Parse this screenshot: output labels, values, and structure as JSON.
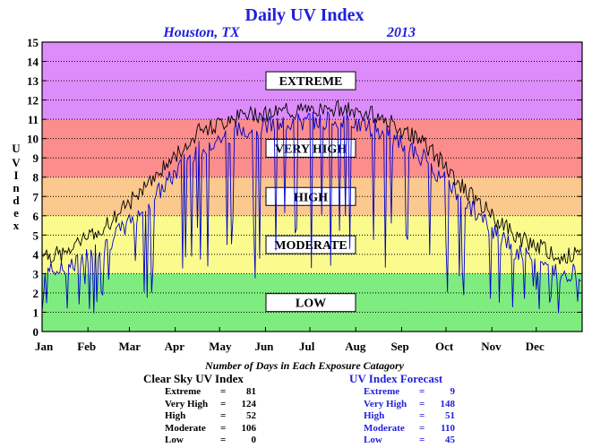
{
  "chart_data": {
    "type": "line",
    "title": "Daily UV Index",
    "subtitle_left": "Houston, TX",
    "subtitle_right": "2013",
    "ylabel": "UV Index",
    "ylim": [
      0,
      15
    ],
    "yticks": [
      0,
      1,
      2,
      3,
      4,
      5,
      6,
      7,
      8,
      9,
      10,
      11,
      12,
      13,
      14,
      15
    ],
    "x_tick_labels": [
      "Jan",
      "Feb",
      "Mar",
      "Apr",
      "May",
      "Jun",
      "Jul",
      "Aug",
      "Sep",
      "Oct",
      "Nov",
      "Dec"
    ],
    "grid": true,
    "bands": [
      {
        "label": "LOW",
        "from": 0,
        "to": 3,
        "color": "#7fec7f"
      },
      {
        "label": "MODERATE",
        "from": 3,
        "to": 6,
        "color": "#fbfb8d"
      },
      {
        "label": "HIGH",
        "from": 6,
        "to": 8,
        "color": "#fbc88d"
      },
      {
        "label": "VERY HIGH",
        "from": 8,
        "to": 11,
        "color": "#fb8d8d"
      },
      {
        "label": "EXTREME",
        "from": 11,
        "to": 15,
        "color": "#dd8dfb"
      }
    ],
    "series": [
      {
        "name": "Clear Sky UV Index",
        "color": "#000000",
        "months": [
          "Jan",
          "Feb",
          "Mar",
          "Apr",
          "May",
          "Jun",
          "Jul",
          "Aug",
          "Sep",
          "Oct",
          "Nov",
          "Dec"
        ],
        "values": [
          4.0,
          5.6,
          7.8,
          10.3,
          11.2,
          11.4,
          11.6,
          11.2,
          9.8,
          7.2,
          5.0,
          3.9
        ]
      },
      {
        "name": "UV Index Forecast",
        "color": "#0000cc",
        "months": [
          "Jan",
          "Feb",
          "Mar",
          "Apr",
          "May",
          "Jun",
          "Jul",
          "Aug",
          "Sep",
          "Oct",
          "Nov",
          "Dec"
        ],
        "values": [
          3.2,
          4.6,
          6.8,
          9.5,
          10.5,
          10.8,
          11.0,
          10.5,
          9.0,
          6.5,
          4.2,
          3.0
        ]
      }
    ]
  },
  "stats": {
    "heading": "Number of Days in Each Exposure Catagory",
    "clear_sky": {
      "title": "Clear Sky UV Index",
      "rows": [
        {
          "label": "Extreme",
          "value": "81"
        },
        {
          "label": "Very High",
          "value": "124"
        },
        {
          "label": "High",
          "value": "52"
        },
        {
          "label": "Moderate",
          "value": "106"
        },
        {
          "label": "Low",
          "value": "0"
        }
      ]
    },
    "forecast": {
      "title": "UV Index Forecast",
      "rows": [
        {
          "label": "Extreme",
          "value": "9"
        },
        {
          "label": "Very High",
          "value": "148"
        },
        {
          "label": "High",
          "value": "51"
        },
        {
          "label": "Moderate",
          "value": "110"
        },
        {
          "label": "Low",
          "value": "45"
        }
      ]
    }
  }
}
